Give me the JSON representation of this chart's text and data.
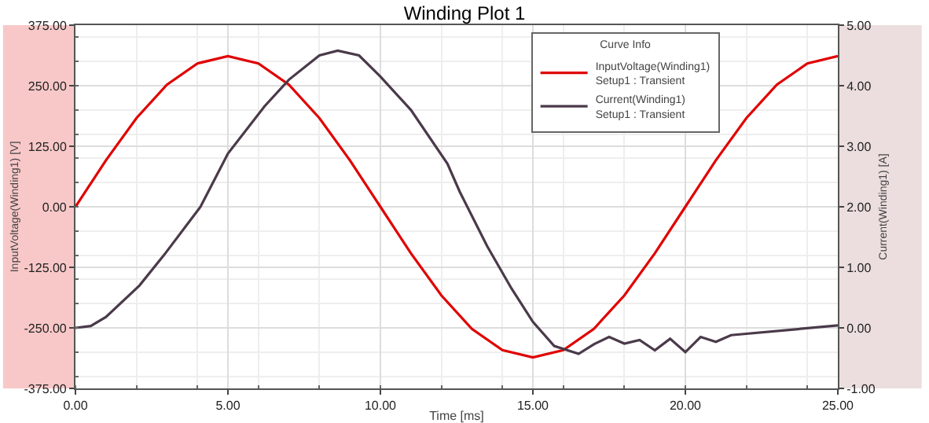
{
  "chart_data": {
    "type": "line",
    "title": "Winding Plot 1",
    "xlabel": "Time [ms]",
    "ylabel": "InputVoltage(Winding1) [V]",
    "y2label": "Current(Winding1) [A]",
    "legend_title": "Curve Info",
    "series": [
      {
        "name": "InputVoltage(Winding1)\nSetup1 : Transient",
        "color": "#e00000",
        "x": [
          0,
          1,
          2,
          3,
          4,
          5,
          6,
          7,
          8,
          9,
          10,
          11,
          12,
          13,
          14,
          15,
          16,
          17,
          18,
          19,
          20,
          21,
          22,
          23,
          24,
          25
        ],
        "values": [
          0,
          96,
          183,
          252,
          296,
          311,
          296,
          252,
          183,
          96,
          0,
          -96,
          -183,
          -252,
          -296,
          -311,
          -296,
          -252,
          -183,
          -96,
          0,
          96,
          183,
          252,
          296,
          311
        ]
      },
      {
        "name": "Current(Winding1)\nSetup1 : Transient",
        "color": "#4a3a4a",
        "axis": "y2",
        "x": [
          0,
          0.5,
          1,
          2.1,
          2.9,
          4.1,
          5,
          6.2,
          7,
          8,
          8.6,
          9.3,
          10,
          11,
          12.2,
          12.6,
          13.5,
          14.3,
          15,
          15.7,
          16.5,
          17,
          17.5,
          18,
          18.5,
          19,
          19.5,
          20,
          20.5,
          21,
          21.5,
          25
        ],
        "values": [
          0,
          0.03,
          0.18,
          0.7,
          1.2,
          2,
          2.88,
          3.66,
          4.1,
          4.5,
          4.58,
          4.5,
          4.15,
          3.6,
          2.71,
          2.25,
          1.35,
          0.65,
          0.1,
          -0.3,
          -0.43,
          -0.27,
          -0.15,
          -0.26,
          -0.2,
          -0.37,
          -0.18,
          -0.4,
          -0.15,
          -0.23,
          -0.12,
          0.04
        ]
      }
    ],
    "xlim": [
      0,
      25
    ],
    "xticks": [
      {
        "value": 0,
        "label": "0.00"
      },
      {
        "value": 5,
        "label": "5.00"
      },
      {
        "value": 10,
        "label": "10.00"
      },
      {
        "value": 15,
        "label": "15.00"
      },
      {
        "value": 20,
        "label": "20.00"
      },
      {
        "value": 25,
        "label": "25.00"
      }
    ],
    "ylim": [
      -375,
      375
    ],
    "yticks": [
      {
        "value": -375,
        "label": "-375.00"
      },
      {
        "value": -250,
        "label": "-250.00"
      },
      {
        "value": -125,
        "label": "-125.00"
      },
      {
        "value": 0,
        "label": "0.00"
      },
      {
        "value": 125,
        "label": "125.00"
      },
      {
        "value": 250,
        "label": "250.00"
      },
      {
        "value": 375,
        "label": "375.00"
      }
    ],
    "y2lim": [
      -1,
      5
    ],
    "y2ticks": [
      {
        "value": -1,
        "label": "-1.00"
      },
      {
        "value": 0,
        "label": "0.00"
      },
      {
        "value": 1,
        "label": "1.00"
      },
      {
        "value": 2,
        "label": "2.00"
      },
      {
        "value": 3,
        "label": "3.00"
      },
      {
        "value": 4,
        "label": "4.00"
      },
      {
        "value": 5,
        "label": "5.00"
      }
    ],
    "grid": true,
    "legend": "top right",
    "marker": "none",
    "line_style": "solid"
  }
}
